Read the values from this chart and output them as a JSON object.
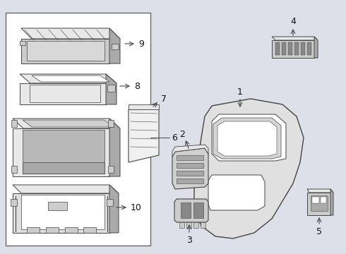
{
  "bg_color": "#dde0e8",
  "line_color": "#444444",
  "white": "#ffffff",
  "gray_light": "#e8e8e8",
  "gray_mid": "#cccccc",
  "gray_dark": "#aaaaaa",
  "label_color": "#111111",
  "box_border": "#555555"
}
